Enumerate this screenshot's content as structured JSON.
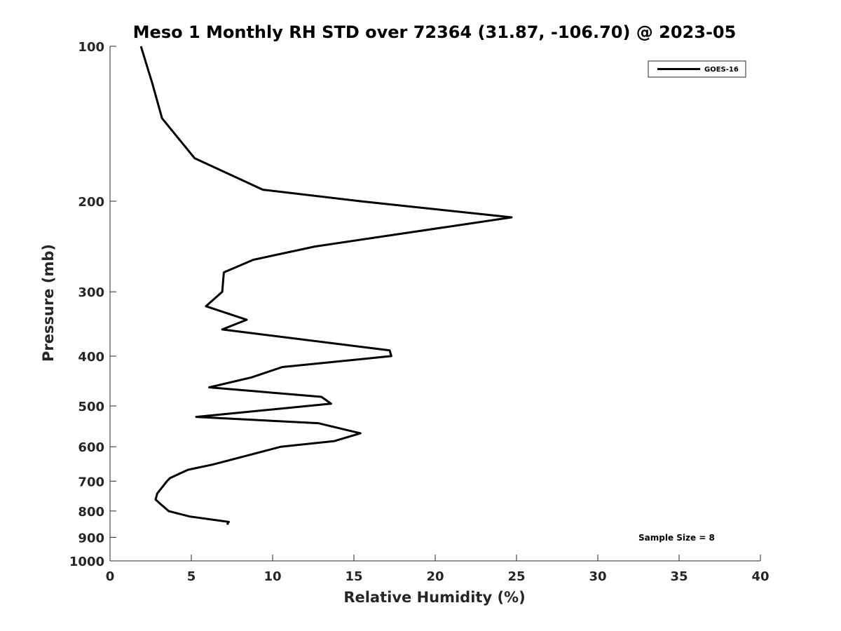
{
  "chart_data": {
    "type": "line",
    "title": "Meso 1 Monthly RH STD over 72364 (31.87, -106.70) @ 2023-05",
    "xlabel": "Relative Humidity (%)",
    "ylabel": "Pressure (mb)",
    "xlim": [
      0,
      40
    ],
    "ylim": [
      1000,
      100
    ],
    "yscale": "log",
    "yreversed": true,
    "xticks": [
      0,
      5,
      10,
      15,
      20,
      25,
      30,
      35,
      40
    ],
    "xtick_labels": [
      "0",
      "5",
      "10",
      "15",
      "20",
      "25",
      "30",
      "35",
      "40"
    ],
    "yticks": [
      100,
      200,
      300,
      400,
      500,
      600,
      700,
      800,
      900,
      1000
    ],
    "ytick_labels": [
      "100",
      "200",
      "300",
      "400",
      "500",
      "600",
      "700",
      "800",
      "900",
      "1000"
    ],
    "grid": false,
    "legend_position": "top-right",
    "annotation": "Sample Size = 8",
    "series": [
      {
        "name": "GOES-16",
        "color": "#000000",
        "x": [
          1.9,
          2.6,
          3.2,
          5.2,
          9.4,
          15.4,
          24.7,
          12.6,
          8.8,
          7.0,
          6.9,
          5.9,
          8.4,
          6.9,
          17.2,
          17.3,
          10.6,
          8.7,
          6.1,
          13.0,
          13.6,
          5.3,
          12.8,
          15.4,
          13.8,
          10.5,
          8.8,
          6.3,
          4.8,
          3.7,
          3.5,
          2.9,
          2.8,
          3.1,
          3.6,
          4.9,
          7.3,
          7.2
        ],
        "y": [
          100,
          118,
          138,
          165,
          190,
          200,
          215,
          245,
          260,
          275,
          300,
          320,
          340,
          355,
          390,
          400,
          420,
          440,
          460,
          480,
          495,
          525,
          540,
          565,
          585,
          600,
          620,
          650,
          665,
          690,
          700,
          740,
          760,
          775,
          800,
          820,
          840,
          850
        ]
      }
    ]
  }
}
